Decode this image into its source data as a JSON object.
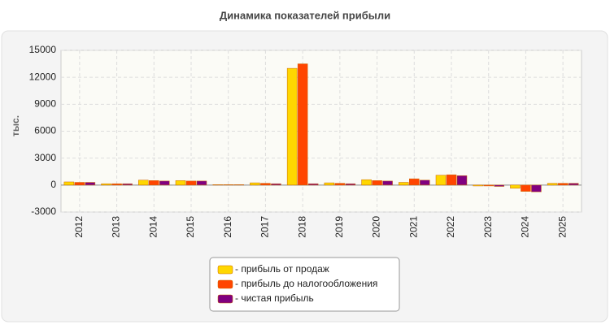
{
  "chart_data": {
    "type": "bar",
    "title": "Динамика показателей прибыли",
    "y_label": "тыс.",
    "categories": [
      "2012",
      "2013",
      "2014",
      "2015",
      "2016",
      "2017",
      "2018",
      "2019",
      "2020",
      "2021",
      "2022",
      "2023",
      "2024",
      "2025"
    ],
    "series": [
      {
        "name": "- прибыль от продаж",
        "color": "#ffd700",
        "values": [
          350,
          150,
          550,
          500,
          50,
          250,
          13000,
          250,
          600,
          300,
          1100,
          -100,
          -350,
          200
        ]
      },
      {
        "name": "- прибыль до налогообложения",
        "color": "#ff4500",
        "values": [
          300,
          150,
          500,
          450,
          50,
          200,
          13500,
          200,
          500,
          700,
          1150,
          -100,
          -700,
          200
        ]
      },
      {
        "name": "- чистая прибыль",
        "color": "#800080",
        "values": [
          300,
          150,
          450,
          450,
          50,
          150,
          150,
          150,
          450,
          550,
          1050,
          -150,
          -750,
          200
        ]
      }
    ],
    "ylim": [
      -3000,
      15000
    ],
    "yticks": [
      -3000,
      0,
      3000,
      6000,
      9000,
      12000,
      15000
    ],
    "grid": true
  }
}
